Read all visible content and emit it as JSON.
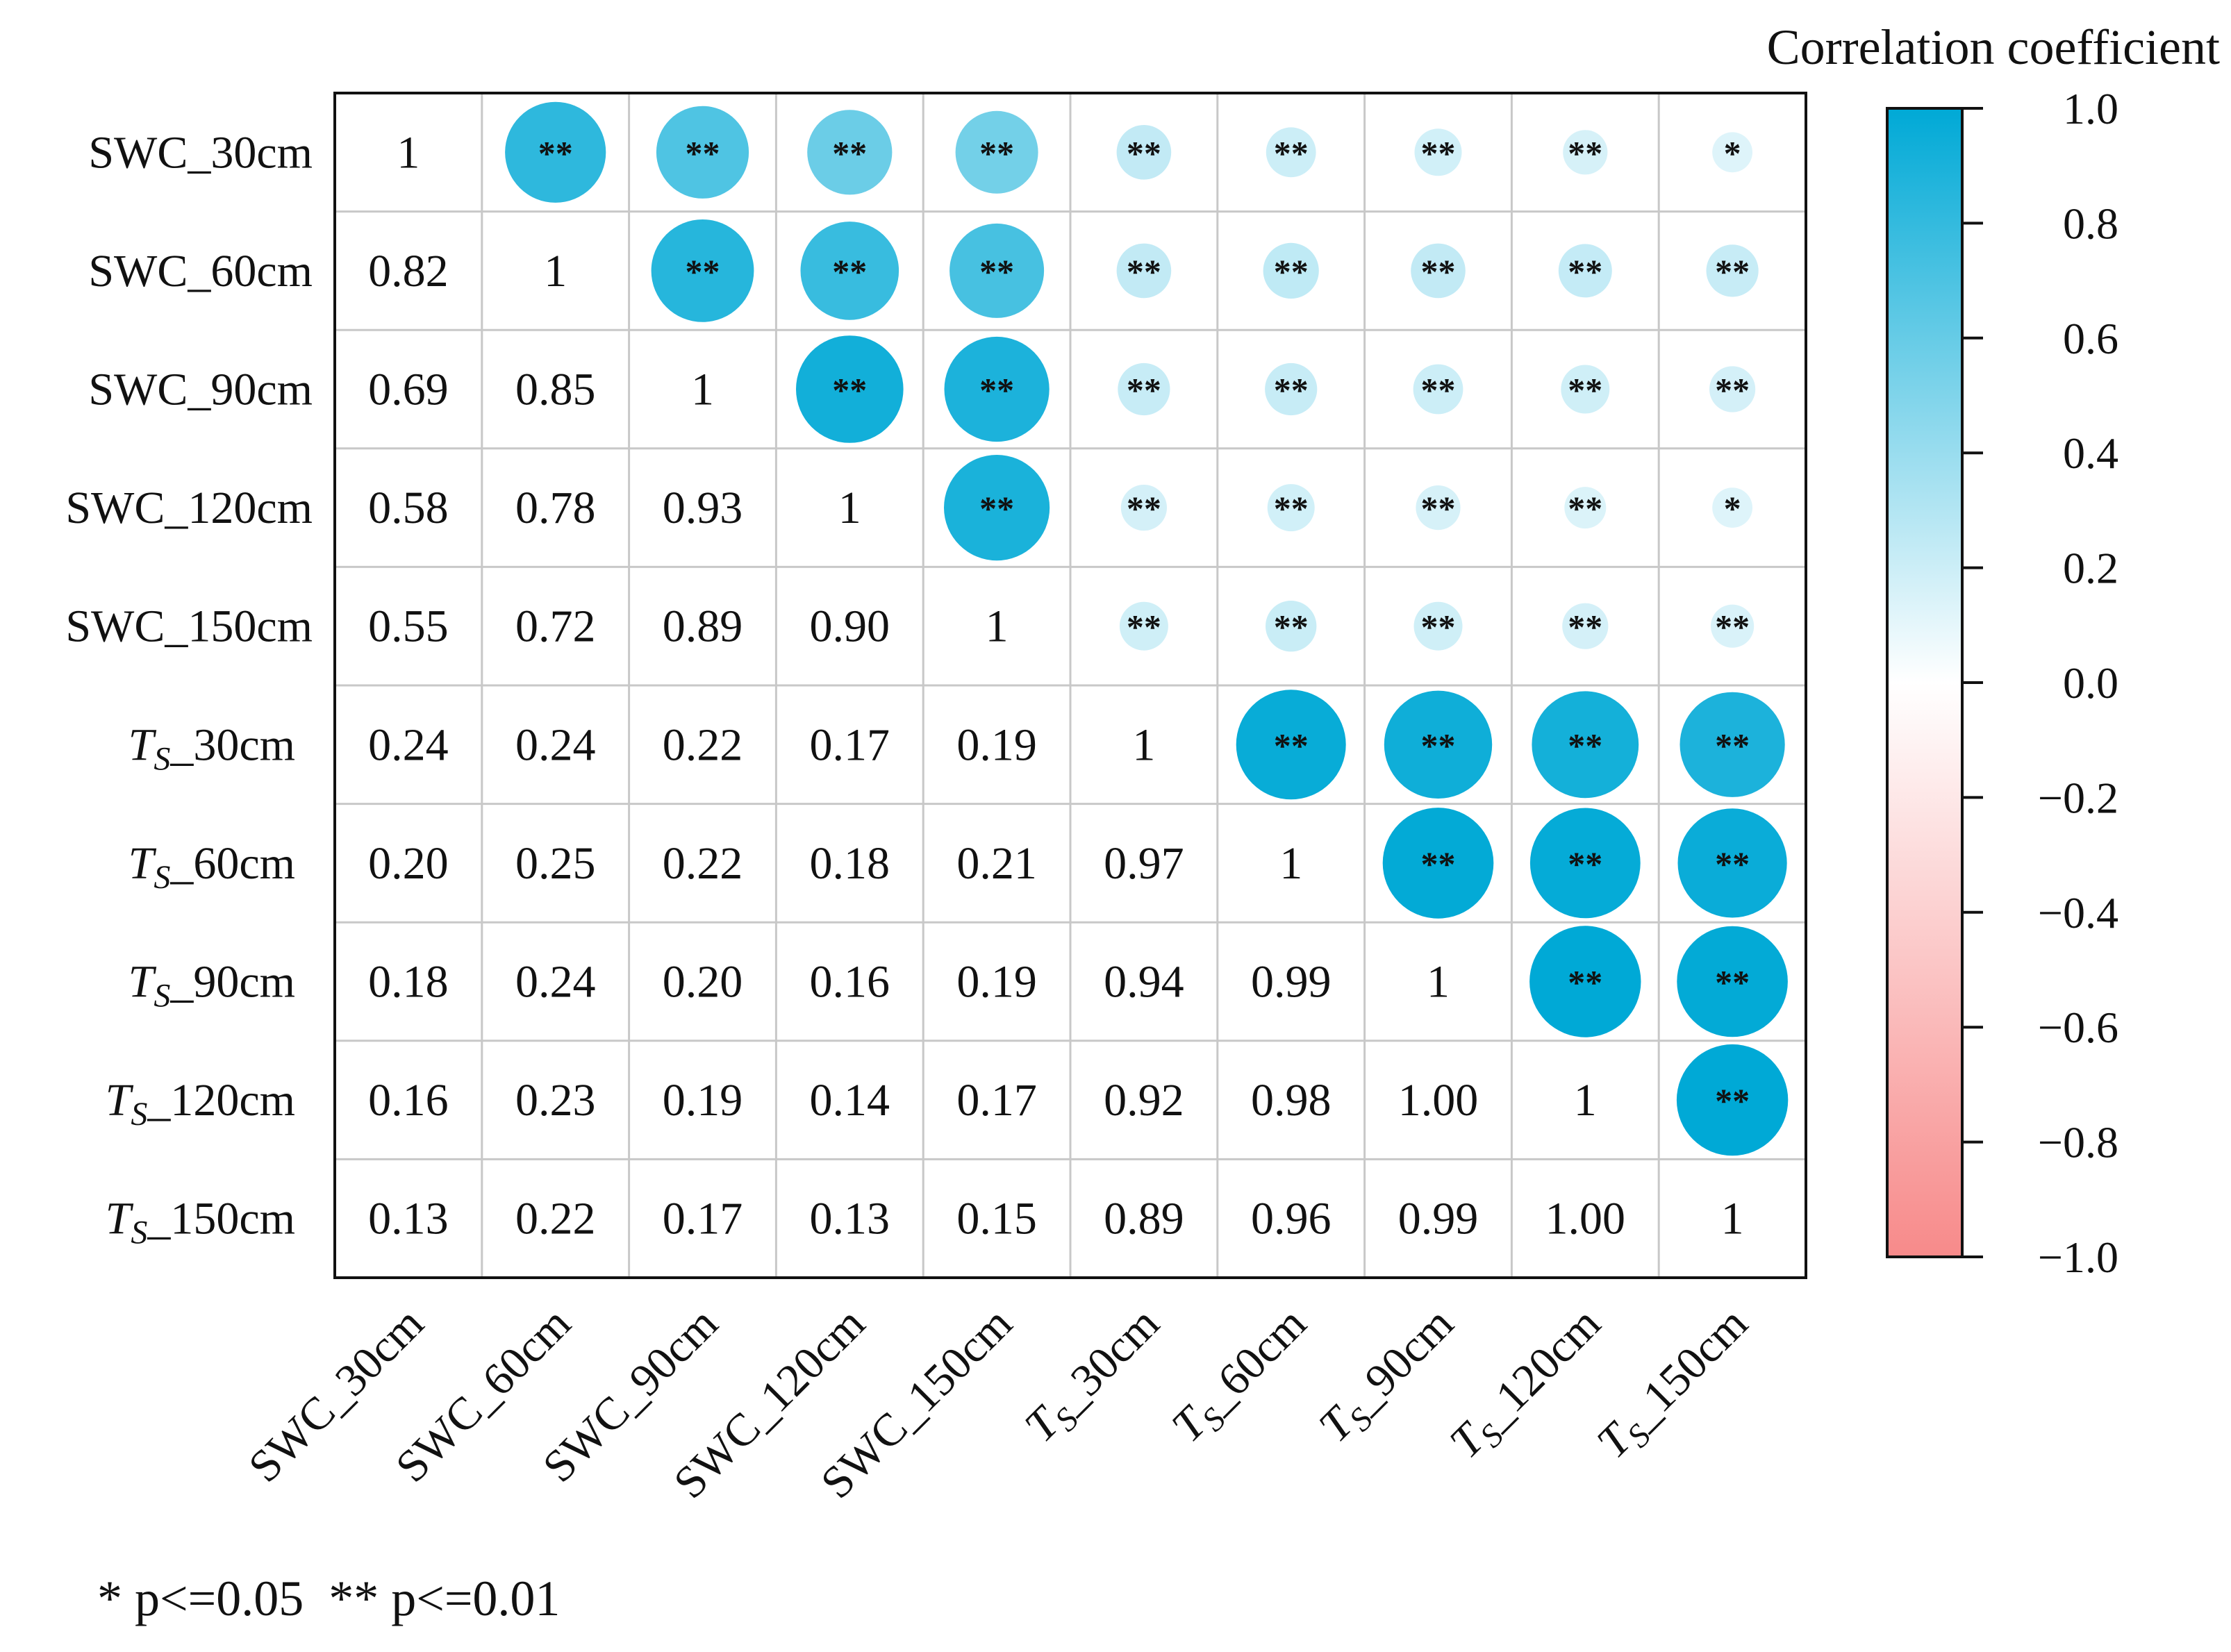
{
  "chart_data": {
    "type": "heatmap",
    "subtype": "correlation-matrix (lower triangle values, upper triangle circles with significance stars)",
    "variables": [
      {
        "prefix": "SWC",
        "italic": false,
        "sub": "",
        "suffix": "_30cm"
      },
      {
        "prefix": "SWC",
        "italic": false,
        "sub": "",
        "suffix": "_60cm"
      },
      {
        "prefix": "SWC",
        "italic": false,
        "sub": "",
        "suffix": "_90cm"
      },
      {
        "prefix": "SWC",
        "italic": false,
        "sub": "",
        "suffix": "_120cm"
      },
      {
        "prefix": "SWC",
        "italic": false,
        "sub": "",
        "suffix": "_150cm"
      },
      {
        "prefix": "T",
        "italic": true,
        "sub": "S",
        "suffix": "_30cm"
      },
      {
        "prefix": "T",
        "italic": true,
        "sub": "S",
        "suffix": "_60cm"
      },
      {
        "prefix": "T",
        "italic": true,
        "sub": "S",
        "suffix": "_90cm"
      },
      {
        "prefix": "T",
        "italic": true,
        "sub": "S",
        "suffix": "_120cm"
      },
      {
        "prefix": "T",
        "italic": true,
        "sub": "S",
        "suffix": "_150cm"
      }
    ],
    "labels": [
      [
        "1",
        "**",
        "**",
        "**",
        "**",
        "**",
        "**",
        "**",
        "**",
        "*"
      ],
      [
        "0.82",
        "1",
        "**",
        "**",
        "**",
        "**",
        "**",
        "**",
        "**",
        "**"
      ],
      [
        "0.69",
        "0.85",
        "1",
        "**",
        "**",
        "**",
        "**",
        "**",
        "**",
        "**"
      ],
      [
        "0.58",
        "0.78",
        "0.93",
        "1",
        "**",
        "**",
        "**",
        "**",
        "**",
        "*"
      ],
      [
        "0.55",
        "0.72",
        "0.89",
        "0.90",
        "1",
        "**",
        "**",
        "**",
        "**",
        "**"
      ],
      [
        "0.24",
        "0.24",
        "0.22",
        "0.17",
        "0.19",
        "1",
        "**",
        "**",
        "**",
        "**"
      ],
      [
        "0.20",
        "0.25",
        "0.22",
        "0.18",
        "0.21",
        "0.97",
        "1",
        "**",
        "**",
        "**"
      ],
      [
        "0.18",
        "0.24",
        "0.20",
        "0.16",
        "0.19",
        "0.94",
        "0.99",
        "1",
        "**",
        "**"
      ],
      [
        "0.16",
        "0.23",
        "0.19",
        "0.14",
        "0.17",
        "0.92",
        "0.98",
        "1.00",
        "1",
        "**"
      ],
      [
        "0.13",
        "0.22",
        "0.17",
        "0.13",
        "0.15",
        "0.89",
        "0.96",
        "0.99",
        "1.00",
        "1"
      ]
    ],
    "matrix": [
      [
        1.0,
        0.82,
        0.69,
        0.58,
        0.55,
        0.24,
        0.2,
        0.18,
        0.16,
        0.13
      ],
      [
        0.82,
        1.0,
        0.85,
        0.78,
        0.72,
        0.24,
        0.25,
        0.24,
        0.23,
        0.22
      ],
      [
        0.69,
        0.85,
        1.0,
        0.93,
        0.89,
        0.22,
        0.22,
        0.2,
        0.19,
        0.17
      ],
      [
        0.58,
        0.78,
        0.93,
        1.0,
        0.9,
        0.17,
        0.18,
        0.16,
        0.14,
        0.13
      ],
      [
        0.55,
        0.72,
        0.89,
        0.9,
        1.0,
        0.19,
        0.21,
        0.19,
        0.17,
        0.15
      ],
      [
        0.24,
        0.24,
        0.22,
        0.17,
        0.19,
        1.0,
        0.97,
        0.94,
        0.92,
        0.89
      ],
      [
        0.2,
        0.25,
        0.22,
        0.18,
        0.21,
        0.97,
        1.0,
        0.99,
        0.98,
        0.96
      ],
      [
        0.18,
        0.24,
        0.2,
        0.16,
        0.19,
        0.94,
        0.99,
        1.0,
        1.0,
        0.99
      ],
      [
        0.16,
        0.23,
        0.19,
        0.14,
        0.17,
        0.92,
        0.98,
        1.0,
        1.0,
        1.0
      ],
      [
        0.13,
        0.22,
        0.17,
        0.13,
        0.15,
        0.89,
        0.96,
        0.99,
        1.0,
        1.0
      ]
    ],
    "colorbar": {
      "title": "Correlation coefficient",
      "range": [
        -1.0,
        1.0
      ],
      "ticks": [
        "1.0",
        "0.8",
        "0.6",
        "0.4",
        "0.2",
        "0.0",
        "−0.2",
        "−0.4",
        "−0.6",
        "−0.8",
        "−1.0"
      ],
      "tick_values": [
        1.0,
        0.8,
        0.6,
        0.4,
        0.2,
        0.0,
        -0.2,
        -0.4,
        -0.6,
        -0.8,
        -1.0
      ],
      "color_positive": "#00a9d6",
      "color_zero": "#ffffff",
      "color_negative": "#f78a8a"
    },
    "footnote": "* p<=0.05  ** p<=0.01",
    "grid": true,
    "legend_position": "right"
  }
}
